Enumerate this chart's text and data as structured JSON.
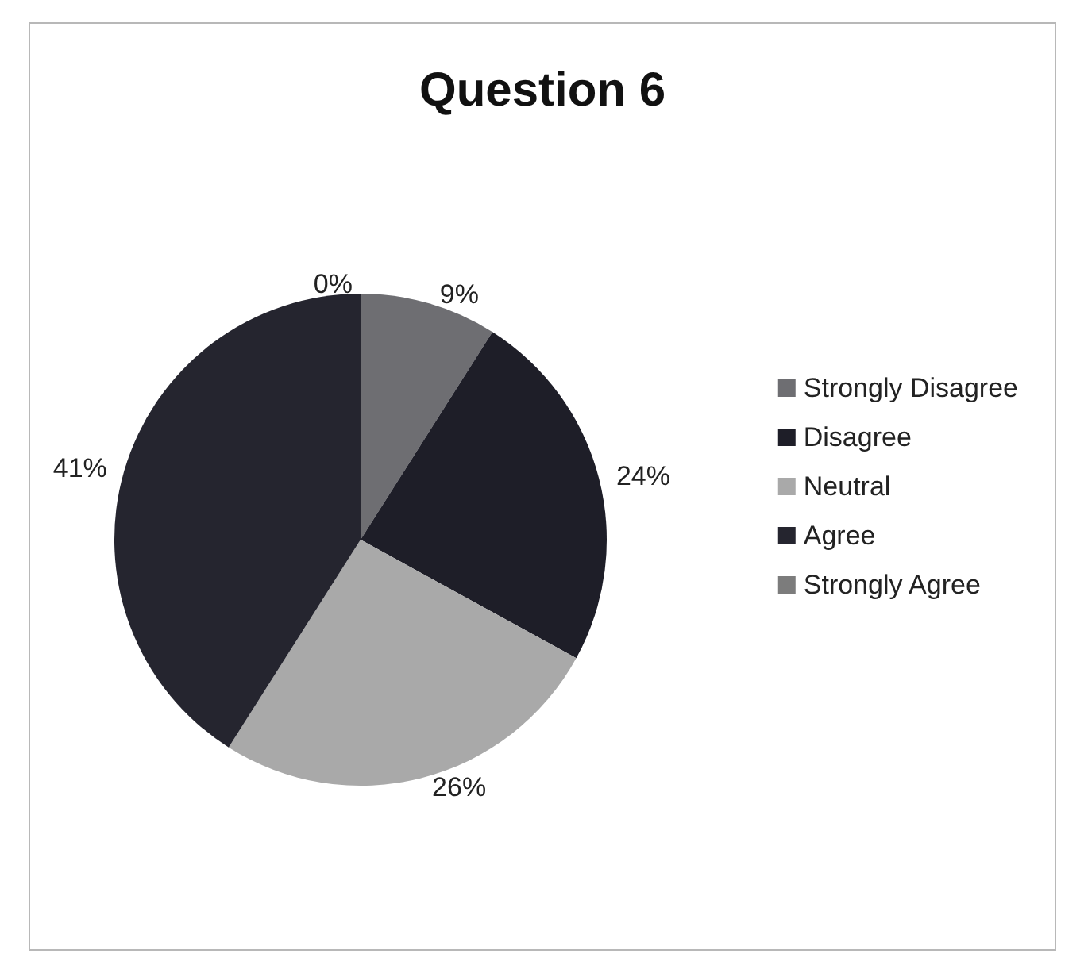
{
  "chart_data": {
    "type": "pie",
    "title": "Question 6",
    "categories": [
      "Strongly Disagree",
      "Disagree",
      "Neutral",
      "Agree",
      "Strongly Agree"
    ],
    "values": [
      9,
      24,
      26,
      41,
      0
    ],
    "value_labels": [
      "9%",
      "24%",
      "26%",
      "41%",
      "0%"
    ],
    "colors": [
      "#6e6e72",
      "#1e1e28",
      "#a9a9a9",
      "#25252f",
      "#7c7c7c"
    ],
    "legend": "right"
  }
}
